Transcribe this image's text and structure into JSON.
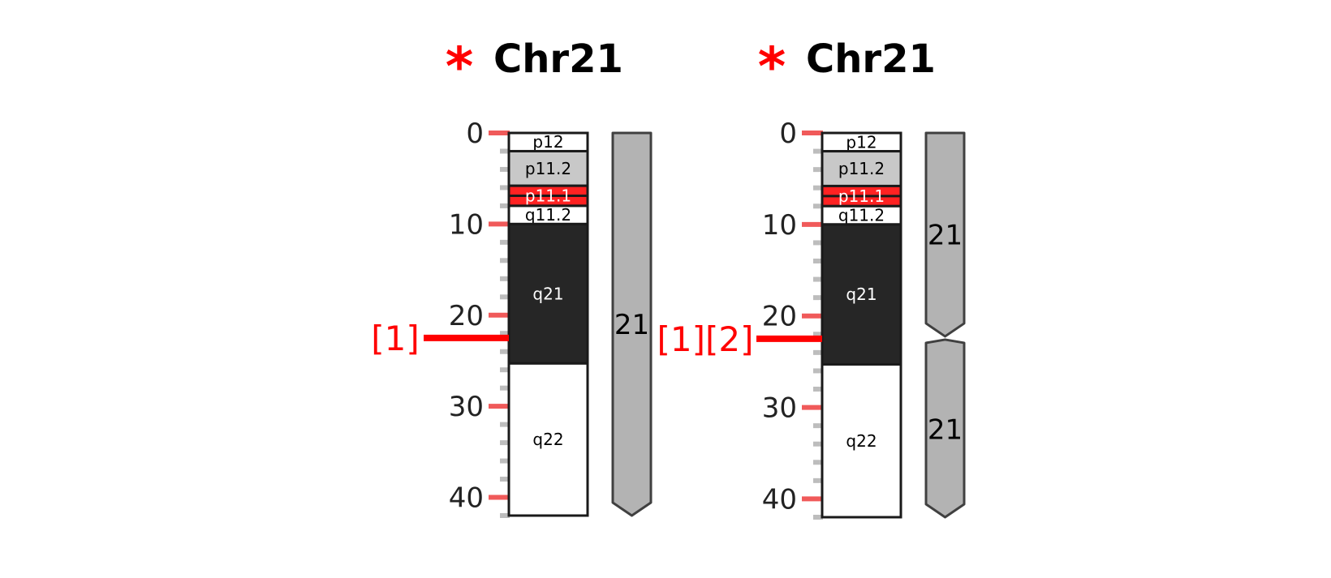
{
  "colors": {
    "accent": "#ff0000",
    "major_tick": "#f05a5a",
    "minor_tick": "#bdbdbd",
    "axis_text": "#222222",
    "band_outline": "#1a1a1a",
    "gray_band": "#c8c8c8",
    "dark_band": "#262626",
    "red_band": "#ff2222",
    "segment_fill": "#b3b3b3",
    "segment_outline": "#404040"
  },
  "axis": {
    "ticks": [
      "0",
      "10",
      "20",
      "30",
      "40"
    ],
    "tick_values": [
      0,
      10,
      20,
      30,
      40
    ],
    "minor_step": 2,
    "max": 42
  },
  "panels": [
    {
      "star": "*",
      "title": "Chr21",
      "bands": [
        {
          "label": "p12",
          "start": 0,
          "end": 2,
          "stain": "white"
        },
        {
          "label": "p11.2",
          "start": 2,
          "end": 5.8,
          "stain": "gray"
        },
        {
          "label": "p11.1",
          "start": 5.8,
          "end": 8,
          "stain": "red"
        },
        {
          "label": "q11.2",
          "start": 8,
          "end": 10,
          "stain": "white"
        },
        {
          "label": "q21",
          "start": 10,
          "end": 25.3,
          "stain": "dark"
        },
        {
          "label": "q22",
          "start": 25.3,
          "end": 42,
          "stain": "white"
        }
      ],
      "marker": {
        "label": "[1]",
        "position": 22.5
      },
      "segments": [
        {
          "label": "21",
          "start": 0,
          "end": 42
        }
      ]
    },
    {
      "star": "*",
      "title": "Chr21",
      "bands": [
        {
          "label": "p12",
          "start": 0,
          "end": 2,
          "stain": "white"
        },
        {
          "label": "p11.2",
          "start": 2,
          "end": 5.8,
          "stain": "gray"
        },
        {
          "label": "p11.1",
          "start": 5.8,
          "end": 8,
          "stain": "red"
        },
        {
          "label": "q11.2",
          "start": 8,
          "end": 10,
          "stain": "white"
        },
        {
          "label": "q21",
          "start": 10,
          "end": 25.3,
          "stain": "dark"
        },
        {
          "label": "q22",
          "start": 25.3,
          "end": 42,
          "stain": "white"
        }
      ],
      "marker": {
        "label": "[1][2]",
        "position": 22.5
      },
      "segments": [
        {
          "label": "21",
          "start": 0,
          "end": 22.5
        },
        {
          "label": "21",
          "start": 22.5,
          "end": 42
        }
      ]
    }
  ]
}
